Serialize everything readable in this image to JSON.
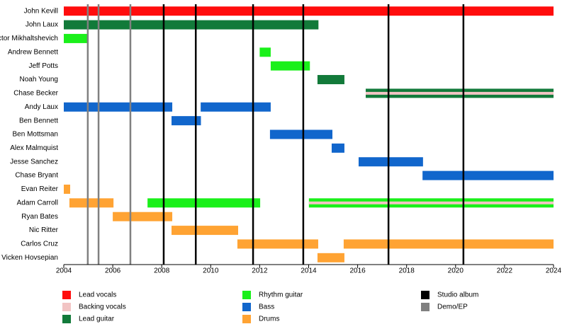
{
  "chart_data": {
    "type": "timeline",
    "xlim": [
      2004,
      2024
    ],
    "xticks": [
      2004,
      2006,
      2008,
      2010,
      2012,
      2014,
      2016,
      2018,
      2020,
      2022,
      2024
    ],
    "roles": [
      {
        "name": "Lead vocals",
        "color": "#ff0d0d"
      },
      {
        "name": "Backing vocals",
        "color": "#f2c4c4"
      },
      {
        "name": "Lead guitar",
        "color": "#127a3a"
      },
      {
        "name": "Rhythm guitar",
        "color": "#1af01a"
      },
      {
        "name": "Bass",
        "color": "#1166cc"
      },
      {
        "name": "Drums",
        "color": "#ffa333"
      }
    ],
    "events": [
      {
        "name": "Studio album",
        "color": "#000000",
        "x": [
          2008.08,
          2009.39,
          2011.73,
          2013.78,
          2017.26,
          2020.32
        ]
      },
      {
        "name": "Demo/EP",
        "color": "#808080",
        "x": [
          2004.98,
          2005.42,
          2006.72
        ]
      }
    ],
    "members": [
      {
        "name": "John Kevill",
        "spans": [
          {
            "role": "Lead vocals",
            "start": 2004,
            "end": 2024
          }
        ]
      },
      {
        "name": "John Laux",
        "spans": [
          {
            "role": "Lead guitar",
            "start": 2004,
            "end": 2014.4
          }
        ]
      },
      {
        "name": "Victor Mikhaltshevich",
        "spans": [
          {
            "role": "Rhythm guitar",
            "start": 2004,
            "end": 2005.0
          }
        ]
      },
      {
        "name": "Andrew Bennett",
        "spans": [
          {
            "role": "Rhythm guitar",
            "start": 2012.0,
            "end": 2012.45
          }
        ]
      },
      {
        "name": "Jeff Potts",
        "spans": [
          {
            "role": "Rhythm guitar",
            "start": 2012.45,
            "end": 2014.05
          }
        ]
      },
      {
        "name": "Noah Young",
        "spans": [
          {
            "role": "Lead guitar",
            "start": 2014.36,
            "end": 2015.46
          }
        ]
      },
      {
        "name": "Chase Becker",
        "spans": [
          {
            "role": "Lead guitar",
            "stripe": "Backing vocals",
            "start": 2016.33,
            "end": 2024
          }
        ]
      },
      {
        "name": "Andy Laux",
        "spans": [
          {
            "role": "Bass",
            "start": 2004,
            "end": 2008.43
          },
          {
            "role": "Bass",
            "start": 2009.59,
            "end": 2012.45
          }
        ]
      },
      {
        "name": "Ben Bennett",
        "spans": [
          {
            "role": "Bass",
            "start": 2008.4,
            "end": 2009.6
          }
        ]
      },
      {
        "name": "Ben Mottsman",
        "spans": [
          {
            "role": "Bass",
            "start": 2012.42,
            "end": 2014.97
          }
        ]
      },
      {
        "name": "Alex Malmquist",
        "spans": [
          {
            "role": "Bass",
            "start": 2014.94,
            "end": 2015.46
          }
        ]
      },
      {
        "name": "Jesse Sanchez",
        "spans": [
          {
            "role": "Bass",
            "start": 2016.04,
            "end": 2018.67
          }
        ]
      },
      {
        "name": "Chase Bryant",
        "spans": [
          {
            "role": "Bass",
            "start": 2018.65,
            "end": 2024
          }
        ]
      },
      {
        "name": "Evan Reiter",
        "spans": [
          {
            "role": "Drums",
            "start": 2004,
            "end": 2004.26
          }
        ]
      },
      {
        "name": "Adam Carroll",
        "spans": [
          {
            "role": "Drums",
            "start": 2004.23,
            "end": 2006.03
          },
          {
            "role": "Rhythm guitar",
            "start": 2007.42,
            "end": 2012.02
          },
          {
            "role": "Rhythm guitar",
            "stripe": "Backing vocals",
            "start": 2014.01,
            "end": 2024
          }
        ]
      },
      {
        "name": "Ryan Bates",
        "spans": [
          {
            "role": "Drums",
            "start": 2006.0,
            "end": 2008.43
          }
        ]
      },
      {
        "name": "Nic Ritter",
        "spans": [
          {
            "role": "Drums",
            "start": 2008.4,
            "end": 2011.12
          }
        ]
      },
      {
        "name": "Carlos Cruz",
        "spans": [
          {
            "role": "Drums",
            "start": 2011.09,
            "end": 2014.39
          },
          {
            "role": "Drums",
            "start": 2015.43,
            "end": 2024
          }
        ]
      },
      {
        "name": "Vicken Hovsepian",
        "spans": [
          {
            "role": "Drums",
            "start": 2014.36,
            "end": 2015.46
          }
        ]
      }
    ]
  }
}
